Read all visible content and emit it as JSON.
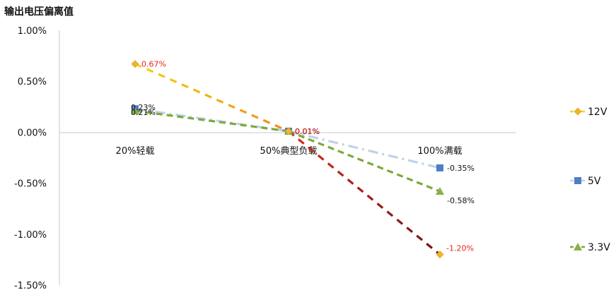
{
  "chart_data": {
    "type": "line",
    "title": "输出电压偏离值",
    "categories": [
      "20%轻载",
      "50%典型负载",
      "100%满载"
    ],
    "ylim": [
      -1.5,
      1.0
    ],
    "yticks": [
      1.0,
      0.5,
      0.0,
      -0.5,
      -1.0,
      -1.5
    ],
    "ytick_labels": [
      "1.00%",
      "0.50%",
      "0.00%",
      "-0.50%",
      "-1.00%",
      "-1.50%"
    ],
    "grid": false,
    "legend": "right",
    "series": [
      {
        "name": "12V",
        "values": [
          0.67,
          0.01,
          -1.2
        ],
        "labels": [
          "0.67%",
          "0.01%",
          "-1.20%"
        ],
        "marker": "diamond",
        "marker_color": "#f0b52b",
        "label_color": "#e8251c",
        "segment_colors": [
          [
            "#f7d21a",
            "#ef8a18"
          ],
          [
            "#dd2a1e",
            "#6b1212"
          ]
        ]
      },
      {
        "name": "5V",
        "values": [
          0.23,
          0.01,
          -0.35
        ],
        "labels": [
          "0.23%",
          "0.01%",
          "-0.35%"
        ],
        "marker": "square",
        "marker_color": "#4f7ec6",
        "label_color": "#111111",
        "segment_colors": [
          [
            "#bcd3ea",
            "#bcd3ea"
          ],
          [
            "#bcd3ea",
            "#bcd3ea"
          ]
        ]
      },
      {
        "name": "3.3V",
        "values": [
          0.21,
          0.01,
          -0.58
        ],
        "labels": [
          "0.21%",
          "0.01%",
          "-0.58%"
        ],
        "marker": "triangle",
        "marker_color": "#8ab04a",
        "label_color": "#111111",
        "segment_colors": [
          [
            "#7ea83a",
            "#7ea83a"
          ],
          [
            "#7ea83a",
            "#7ea83a"
          ]
        ]
      }
    ]
  }
}
